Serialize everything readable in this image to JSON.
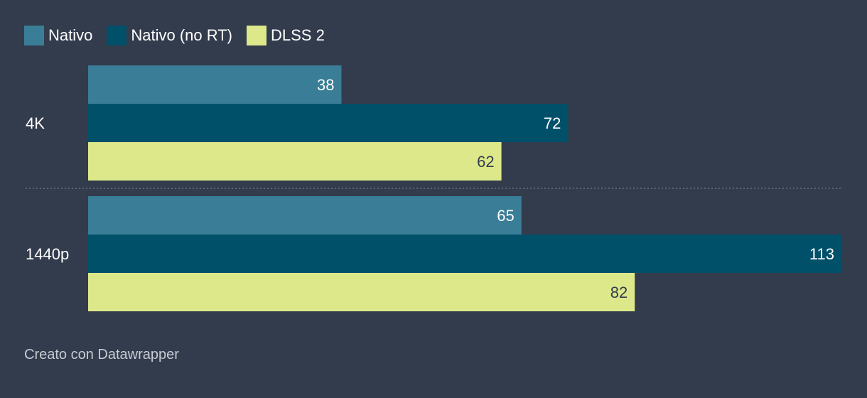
{
  "chart_data": {
    "type": "bar",
    "orientation": "horizontal",
    "grouped": true,
    "categories": [
      "4K",
      "1440p"
    ],
    "series": [
      {
        "name": "Nativo",
        "color": "#3a7d97",
        "values": [
          38,
          65
        ],
        "label_color": "#ffffff"
      },
      {
        "name": "Nativo (no RT)",
        "color": "#01506a",
        "values": [
          72,
          113
        ],
        "label_color": "#ffffff"
      },
      {
        "name": "DLSS 2",
        "color": "#dde88a",
        "values": [
          62,
          82
        ],
        "label_color": "#333c4d"
      }
    ],
    "xlim": [
      0,
      113
    ],
    "legend": "top-left",
    "grid": false
  },
  "footer": {
    "credit": "Creato con Datawrapper"
  },
  "colors": {
    "background": "#333c4d",
    "text": "#ffffff",
    "separator": "#6b7380"
  }
}
